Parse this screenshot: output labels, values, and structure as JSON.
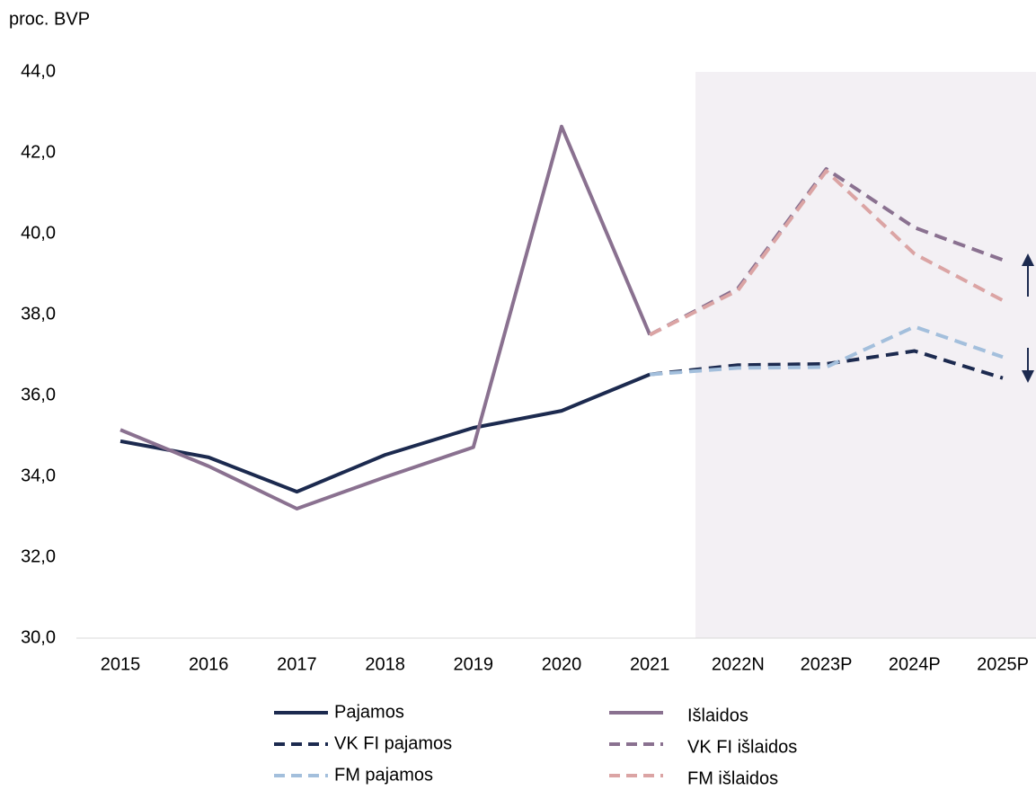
{
  "chart_data": {
    "type": "line",
    "y_axis_label": "proc. BVP",
    "categories": [
      "2015",
      "2016",
      "2017",
      "2018",
      "2019",
      "2020",
      "2021",
      "2022N",
      "2023P",
      "2024P",
      "2025P"
    ],
    "series": [
      {
        "name": "Pajamos",
        "color": "#1c2a4f",
        "line_style": "solid",
        "values": [
          34.87,
          34.47,
          33.62,
          34.53,
          35.2,
          35.62,
          36.52,
          null,
          null,
          null,
          null
        ]
      },
      {
        "name": "Išlaidos",
        "color": "#8a7190",
        "line_style": "solid",
        "values": [
          35.15,
          34.25,
          33.2,
          33.98,
          34.72,
          42.65,
          37.5,
          null,
          null,
          null,
          null
        ]
      },
      {
        "name": "VK FI pajamos",
        "color": "#1c2a4f",
        "line_style": "dashed",
        "values": [
          null,
          null,
          null,
          null,
          null,
          null,
          36.52,
          36.75,
          36.78,
          37.1,
          36.43
        ]
      },
      {
        "name": "VK FI išlaidos",
        "color": "#8a7190",
        "line_style": "dashed",
        "values": [
          null,
          null,
          null,
          null,
          null,
          null,
          37.5,
          38.65,
          41.6,
          40.15,
          39.35
        ]
      },
      {
        "name": "FM pajamos",
        "color": "#a3bfdc",
        "line_style": "dashed",
        "values": [
          null,
          null,
          null,
          null,
          null,
          null,
          36.52,
          36.68,
          36.7,
          37.7,
          36.95
        ]
      },
      {
        "name": "FM išlaidos",
        "color": "#dba4a4",
        "line_style": "dashed",
        "values": [
          null,
          null,
          null,
          null,
          null,
          null,
          37.5,
          38.6,
          41.55,
          39.5,
          38.35
        ]
      }
    ],
    "ylim": [
      30,
      44
    ],
    "yticks": [
      {
        "value": 30,
        "label": "30,0"
      },
      {
        "value": 32,
        "label": "32,0"
      },
      {
        "value": 34,
        "label": "34,0"
      },
      {
        "value": 36,
        "label": "36,0"
      },
      {
        "value": 38,
        "label": "38,0"
      },
      {
        "value": 40,
        "label": "40,0"
      },
      {
        "value": 42,
        "label": "42,0"
      },
      {
        "value": 44,
        "label": "44,0"
      }
    ],
    "grid": false
  }
}
